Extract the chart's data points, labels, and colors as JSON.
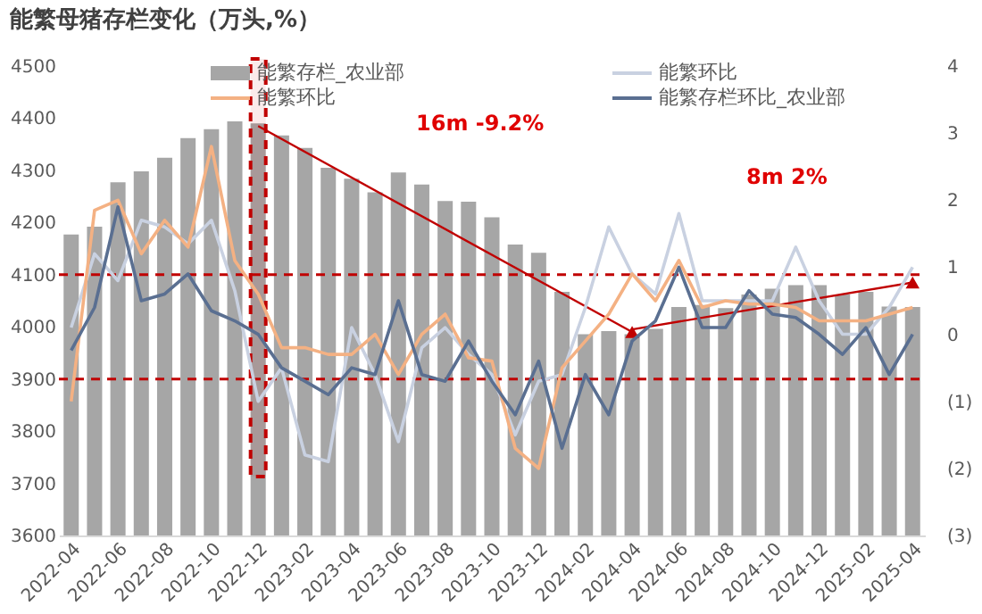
{
  "chart_data": {
    "type": "bar",
    "title": "能繁母猪存栏变化（万头,%）",
    "categories": [
      "2022-04",
      null,
      "2022-06",
      null,
      "2022-08",
      null,
      "2022-10",
      null,
      "2022-12",
      null,
      "2023-02",
      null,
      "2023-04",
      null,
      "2023-06",
      null,
      "2023-08",
      null,
      "2023-10",
      null,
      "2023-12",
      null,
      "2024-02",
      null,
      "2024-04",
      null,
      "2024-06",
      null,
      "2024-08",
      null,
      "2024-10",
      null,
      "2024-12",
      null,
      "2025-02",
      null,
      "2025-04"
    ],
    "series": [
      {
        "name": "能繁存栏_农业部",
        "color": "#a6a6a6",
        "values": [
          4177,
          4192,
          4277,
          4298,
          4324,
          4362,
          4379,
          4394,
          4390,
          4367,
          4343,
          4305,
          4284,
          4258,
          4296,
          4273,
          4241,
          4240,
          4210,
          4158,
          4142,
          4067,
          3986,
          3992,
          3986,
          3996,
          4038,
          4042,
          4036,
          4062,
          4073,
          4080,
          4080,
          4062,
          4067,
          4039,
          4038
        ]
      },
      {
        "name": "能繁环比",
        "type": "line",
        "axis": "y2",
        "color": "#c9d1e1",
        "values": [
          0.1,
          1.2,
          0.8,
          1.7,
          1.6,
          1.35,
          1.7,
          0.65,
          -1.0,
          -0.5,
          -1.8,
          -1.9,
          0.1,
          -0.6,
          -1.6,
          -0.2,
          0.1,
          -0.3,
          -0.6,
          -1.5,
          -0.7,
          -0.6,
          0.4,
          1.6,
          0.9,
          0.6,
          1.8,
          0.5,
          0.5,
          0.5,
          0.5,
          1.3,
          0.5,
          0.0,
          0.0,
          0.4,
          1.0
        ]
      },
      {
        "name": "能繁环比",
        "type": "line",
        "axis": "y2",
        "color": "#f4b183",
        "values": [
          -1.0,
          1.85,
          2.0,
          1.2,
          1.7,
          1.3,
          2.8,
          1.1,
          0.6,
          -0.2,
          -0.2,
          -0.3,
          -0.3,
          0.0,
          -0.6,
          0.0,
          0.3,
          -0.35,
          -0.4,
          -1.7,
          -2.0,
          -0.5,
          -0.1,
          0.3,
          0.9,
          0.5,
          1.1,
          0.4,
          0.5,
          0.45,
          0.45,
          0.4,
          0.2,
          0.2,
          0.2,
          0.3,
          0.4
        ]
      },
      {
        "name": "能繁存栏环比_农业部",
        "type": "line",
        "axis": "y2",
        "color": "#5a6f91",
        "values": [
          -0.24,
          0.4,
          1.9,
          0.5,
          0.6,
          0.9,
          0.35,
          0.2,
          0.0,
          -0.5,
          -0.7,
          -0.9,
          -0.5,
          -0.6,
          0.5,
          -0.6,
          -0.7,
          -0.1,
          -0.7,
          -1.2,
          -0.4,
          -1.7,
          -0.6,
          -1.2,
          -0.1,
          0.2,
          1.0,
          0.1,
          0.1,
          0.65,
          0.3,
          0.25,
          0.0,
          -0.3,
          0.1,
          -0.6,
          0.0
        ]
      },
      {
        "type": "line",
        "color": "#c00000",
        "values": [
          null,
          null,
          null,
          null,
          null,
          null,
          null,
          null,
          4385,
          null,
          null,
          null,
          null,
          null,
          null,
          null,
          null,
          null,
          null,
          null,
          null,
          null,
          null,
          null,
          3990,
          null,
          null,
          null,
          null,
          null,
          null,
          null,
          null,
          null,
          null,
          null,
          null
        ]
      },
      {
        "type": "line",
        "color": "#c00000",
        "values": [
          null,
          null,
          null,
          null,
          null,
          null,
          null,
          null,
          null,
          null,
          null,
          null,
          null,
          null,
          null,
          null,
          null,
          null,
          null,
          null,
          null,
          null,
          null,
          null,
          3995,
          null,
          null,
          null,
          null,
          null,
          null,
          null,
          null,
          null,
          null,
          null,
          4085
        ]
      }
    ],
    "ylim": [
      3600,
      4500
    ],
    "yticks": [
      3600,
      3700,
      3800,
      3900,
      4000,
      4100,
      4200,
      4300,
      4400,
      4500
    ],
    "y2lim": [
      -3,
      4
    ],
    "y2ticks": [
      {
        "value": -3,
        "label": "(3)"
      },
      {
        "value": -2,
        "label": "(2)"
      },
      {
        "value": -1,
        "label": "(1)"
      },
      0,
      1,
      2,
      3,
      4
    ],
    "ref_lines": [
      {
        "axis": "y",
        "value": 4100,
        "color": "#c00000",
        "line_style": "dashed"
      },
      {
        "axis": "y",
        "value": 3900,
        "color": "#c00000",
        "line_style": "dashed"
      }
    ],
    "bands": [
      {
        "axis": "x",
        "from": "2022-12",
        "to": "2022-12",
        "color": "#c00000"
      }
    ],
    "annotations": [
      "16m  -9.2%",
      "8m  2%"
    ],
    "legend": "top",
    "grid": false
  }
}
